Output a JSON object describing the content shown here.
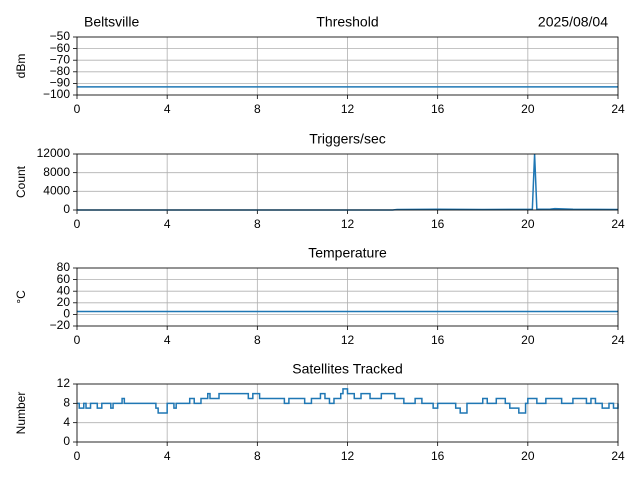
{
  "chart_data": [
    {
      "type": "line",
      "title_left": "Beltsville",
      "title": "Threshold",
      "title_right": "2025/08/04",
      "ylabel": "dBm",
      "x": [
        0,
        24
      ],
      "values": [
        -93,
        -93
      ],
      "color": "#1f77b4",
      "xlim": [
        0,
        24
      ],
      "xticks": [
        0,
        4,
        8,
        12,
        16,
        20,
        24
      ],
      "ylim": [
        -100,
        -50
      ],
      "yticks": [
        {
          "value": -100,
          "label": "−100"
        },
        {
          "value": -90,
          "label": "−90"
        },
        {
          "value": -80,
          "label": "−80"
        },
        {
          "value": -70,
          "label": "−70"
        },
        {
          "value": -60,
          "label": "−60"
        },
        {
          "value": -50,
          "label": "−50"
        }
      ],
      "grid": true
    },
    {
      "type": "line",
      "title": "Triggers/sec",
      "ylabel": "Count",
      "x": [
        0,
        14,
        14.2,
        16,
        18,
        20.2,
        20.3,
        20.4,
        21,
        21.2,
        22,
        24
      ],
      "values": [
        0,
        0,
        100,
        150,
        120,
        150,
        12000,
        150,
        200,
        300,
        150,
        100
      ],
      "color": "#1f77b4",
      "xlim": [
        0,
        24
      ],
      "xticks": [
        0,
        4,
        8,
        12,
        16,
        20,
        24
      ],
      "ylim": [
        0,
        12000
      ],
      "yticks": [
        0,
        4000,
        8000,
        12000
      ],
      "grid": true
    },
    {
      "type": "line",
      "title": "Temperature",
      "ylabel": "°C",
      "x": [
        0,
        24
      ],
      "values": [
        5,
        5
      ],
      "color": "#1f77b4",
      "xlim": [
        0,
        24
      ],
      "xticks": [
        0,
        4,
        8,
        12,
        16,
        20,
        24
      ],
      "ylim": [
        -20,
        80
      ],
      "yticks": [
        {
          "value": -20,
          "label": "−20"
        },
        0,
        20,
        40,
        60,
        80
      ],
      "grid": true
    },
    {
      "type": "step",
      "title": "Satellites Tracked",
      "ylabel": "Number",
      "x": [
        0,
        0.1,
        0.3,
        0.4,
        0.6,
        0.9,
        1.1,
        1.5,
        1.6,
        2.0,
        2.1,
        3.5,
        3.6,
        4.0,
        4.3,
        4.4,
        5.0,
        5.2,
        5.5,
        5.8,
        5.9,
        6.3,
        7.6,
        7.8,
        8.1,
        9.2,
        9.4,
        10.1,
        10.4,
        10.8,
        11.0,
        11.2,
        11.4,
        11.7,
        11.8,
        12.0,
        12.3,
        12.6,
        13.0,
        13.5,
        14.1,
        14.5,
        15.0,
        15.3,
        15.8,
        16.0,
        16.8,
        17.0,
        17.3,
        18.0,
        18.2,
        18.6,
        19.0,
        19.2,
        19.6,
        19.9,
        20.0,
        20.4,
        20.8,
        21.5,
        22.0,
        22.6,
        22.8,
        23.0,
        23.3,
        23.6,
        23.8,
        24.0
      ],
      "values": [
        8,
        7,
        8,
        7,
        8,
        7,
        8,
        7,
        8,
        9,
        8,
        7,
        6,
        8,
        7,
        8,
        9,
        8,
        9,
        10,
        9,
        10,
        9,
        10,
        9,
        8,
        9,
        8,
        9,
        10,
        9,
        8,
        9,
        10,
        11,
        10,
        9,
        10,
        9,
        10,
        9,
        8,
        9,
        8,
        7,
        8,
        7,
        6,
        8,
        9,
        8,
        9,
        8,
        7,
        6,
        8,
        9,
        8,
        9,
        8,
        9,
        8,
        9,
        8,
        7,
        8,
        7,
        8
      ],
      "color": "#1f77b4",
      "xlim": [
        0,
        24
      ],
      "xticks": [
        0,
        4,
        8,
        12,
        16,
        20,
        24
      ],
      "ylim": [
        0,
        12
      ],
      "yticks": [
        0,
        4,
        8,
        12
      ],
      "grid": true
    }
  ]
}
